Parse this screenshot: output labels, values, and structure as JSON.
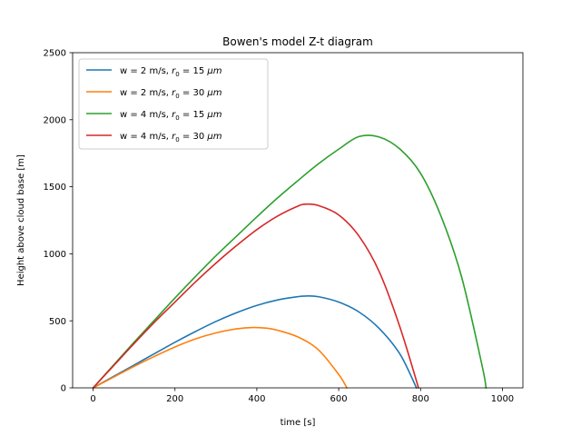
{
  "chart_data": {
    "type": "line",
    "title": "Bowen's model Z-t diagram",
    "xlabel": "time [s]",
    "ylabel": "Height above cloud base [m]",
    "xlim": [
      -50,
      1050
    ],
    "ylim": [
      0,
      2500
    ],
    "xticks": [
      0,
      200,
      400,
      600,
      800,
      1000
    ],
    "yticks": [
      0,
      500,
      1000,
      1500,
      2000,
      2500
    ],
    "grid": false,
    "legend_position": "top-left",
    "series": [
      {
        "name": "w = 2 m/s, r0 = 15 μm",
        "legend": {
          "pre": "w = 2 m/s, ",
          "r": "r",
          "sub": "0",
          "post": " = 15 ",
          "unit": "μm"
        },
        "color": "#1f77b4",
        "x": [
          0,
          50,
          100,
          150,
          200,
          250,
          300,
          350,
          400,
          450,
          500,
          520,
          550,
          600,
          650,
          700,
          750,
          790
        ],
        "y": [
          0,
          85,
          170,
          255,
          340,
          420,
          495,
          560,
          615,
          655,
          680,
          685,
          680,
          640,
          565,
          440,
          250,
          0
        ]
      },
      {
        "name": "w = 2 m/s, r0 = 30 μm",
        "legend": {
          "pre": "w = 2 m/s, ",
          "r": "r",
          "sub": "0",
          "post": " = 30 ",
          "unit": "μm"
        },
        "color": "#ff7f0e",
        "x": [
          0,
          50,
          100,
          150,
          200,
          250,
          300,
          350,
          390,
          425,
          450,
          500,
          550,
          600,
          620
        ],
        "y": [
          0,
          80,
          160,
          235,
          305,
          365,
          410,
          440,
          450,
          445,
          430,
          380,
          285,
          100,
          0
        ]
      },
      {
        "name": "w = 4 m/s, r0 = 15 μm",
        "legend": {
          "pre": "w = 4 m/s, ",
          "r": "r",
          "sub": "0",
          "post": " = 15 ",
          "unit": "μm"
        },
        "color": "#2ca02c",
        "x": [
          0,
          50,
          100,
          150,
          200,
          250,
          300,
          350,
          400,
          450,
          500,
          550,
          600,
          650,
          700,
          750,
          800,
          850,
          900,
          950,
          960
        ],
        "y": [
          0,
          170,
          340,
          505,
          670,
          830,
          985,
          1130,
          1275,
          1415,
          1545,
          1670,
          1780,
          1875,
          1870,
          1780,
          1600,
          1280,
          830,
          170,
          0
        ]
      },
      {
        "name": "w = 4 m/s, r0 = 30 μm",
        "legend": {
          "pre": "w = 4 m/s, ",
          "r": "r",
          "sub": "0",
          "post": " = 30 ",
          "unit": "μm"
        },
        "color": "#d62728",
        "x": [
          0,
          50,
          100,
          150,
          200,
          250,
          300,
          350,
          400,
          450,
          500,
          520,
          550,
          600,
          650,
          700,
          750,
          795
        ],
        "y": [
          0,
          165,
          330,
          490,
          640,
          790,
          930,
          1060,
          1180,
          1280,
          1355,
          1370,
          1360,
          1290,
          1130,
          860,
          450,
          0
        ]
      }
    ]
  }
}
